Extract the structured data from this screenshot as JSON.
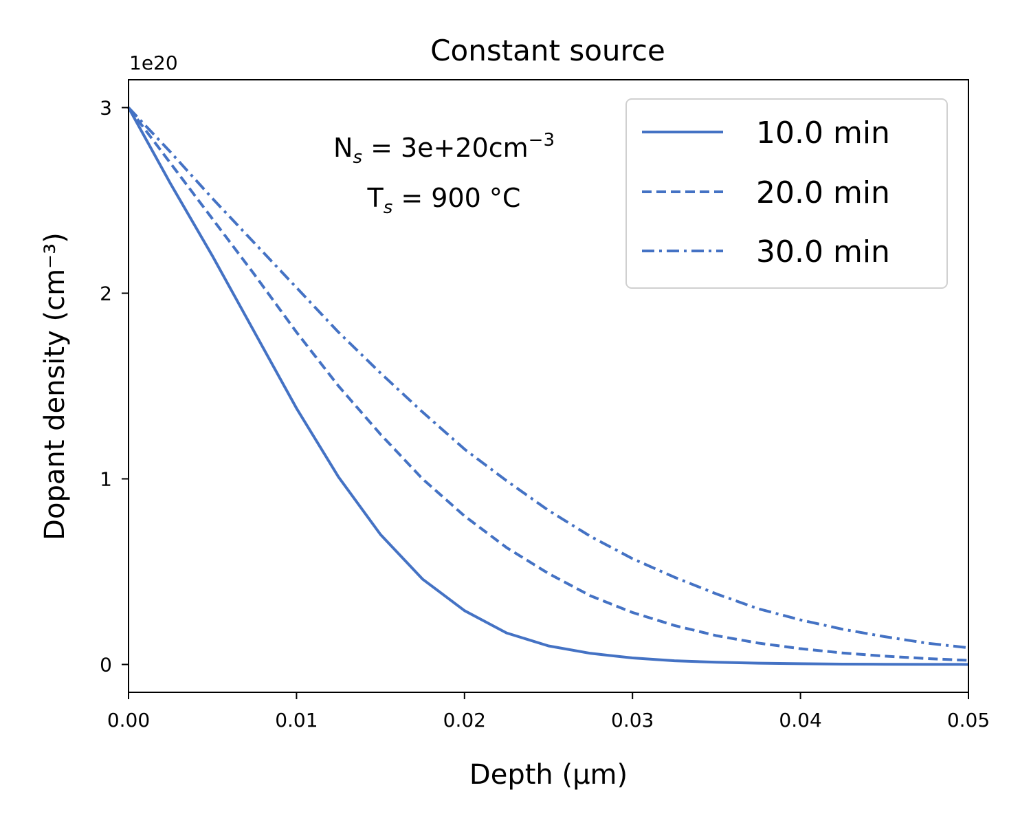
{
  "chart_data": {
    "type": "line",
    "title": "Constant source",
    "xlabel": "Depth (μm)",
    "ylabel": "Dopant density (cm⁻³)",
    "y_offset_label": "1e20",
    "xlim": [
      0.0,
      0.05
    ],
    "ylim": [
      -0.15,
      3.15
    ],
    "x_ticks": [
      0.0,
      0.01,
      0.02,
      0.03,
      0.04,
      0.05
    ],
    "x_tick_labels": [
      "0.00",
      "0.01",
      "0.02",
      "0.03",
      "0.04",
      "0.05"
    ],
    "y_ticks": [
      0,
      1,
      2,
      3
    ],
    "y_tick_labels": [
      "0",
      "1",
      "2",
      "3"
    ],
    "grid": false,
    "legend_position": "top-right",
    "line_color": "#4472c4",
    "annotations": [
      {
        "symbol": "N",
        "subscript": "s",
        "text": " = 3e+20cm",
        "superscript": "−3"
      },
      {
        "symbol": "T",
        "subscript": "s",
        "text": " = 900 °C",
        "superscript": ""
      }
    ],
    "series": [
      {
        "name": "10.0 min",
        "style": "solid",
        "x": [
          0.0,
          0.0025,
          0.005,
          0.0075,
          0.01,
          0.0125,
          0.015,
          0.0175,
          0.02,
          0.0225,
          0.025,
          0.0275,
          0.03,
          0.0325,
          0.035,
          0.0375,
          0.04,
          0.0425,
          0.045,
          0.0475,
          0.05
        ],
        "y": [
          3.0,
          2.59,
          2.2,
          1.79,
          1.38,
          1.01,
          0.7,
          0.46,
          0.29,
          0.17,
          0.1,
          0.06,
          0.035,
          0.02,
          0.012,
          0.007,
          0.004,
          0.002,
          0.001,
          0.0005,
          0.0002
        ]
      },
      {
        "name": "20.0 min",
        "style": "dashed",
        "x": [
          0.0,
          0.0025,
          0.005,
          0.0075,
          0.01,
          0.0125,
          0.015,
          0.0175,
          0.02,
          0.0225,
          0.025,
          0.0275,
          0.03,
          0.0325,
          0.035,
          0.0375,
          0.04,
          0.0425,
          0.045,
          0.0475,
          0.05
        ],
        "y": [
          3.0,
          2.7,
          2.4,
          2.1,
          1.79,
          1.5,
          1.24,
          1.0,
          0.8,
          0.63,
          0.49,
          0.37,
          0.28,
          0.21,
          0.155,
          0.115,
          0.085,
          0.062,
          0.045,
          0.032,
          0.022
        ]
      },
      {
        "name": "30.0 min",
        "style": "dashdot",
        "x": [
          0.0,
          0.0025,
          0.005,
          0.0075,
          0.01,
          0.0125,
          0.015,
          0.0175,
          0.02,
          0.0225,
          0.025,
          0.0275,
          0.03,
          0.0325,
          0.035,
          0.0375,
          0.04,
          0.0425,
          0.045,
          0.0475,
          0.05
        ],
        "y": [
          3.0,
          2.76,
          2.51,
          2.27,
          2.03,
          1.79,
          1.57,
          1.36,
          1.16,
          0.99,
          0.83,
          0.69,
          0.57,
          0.47,
          0.38,
          0.3,
          0.24,
          0.19,
          0.15,
          0.115,
          0.09
        ]
      }
    ]
  }
}
